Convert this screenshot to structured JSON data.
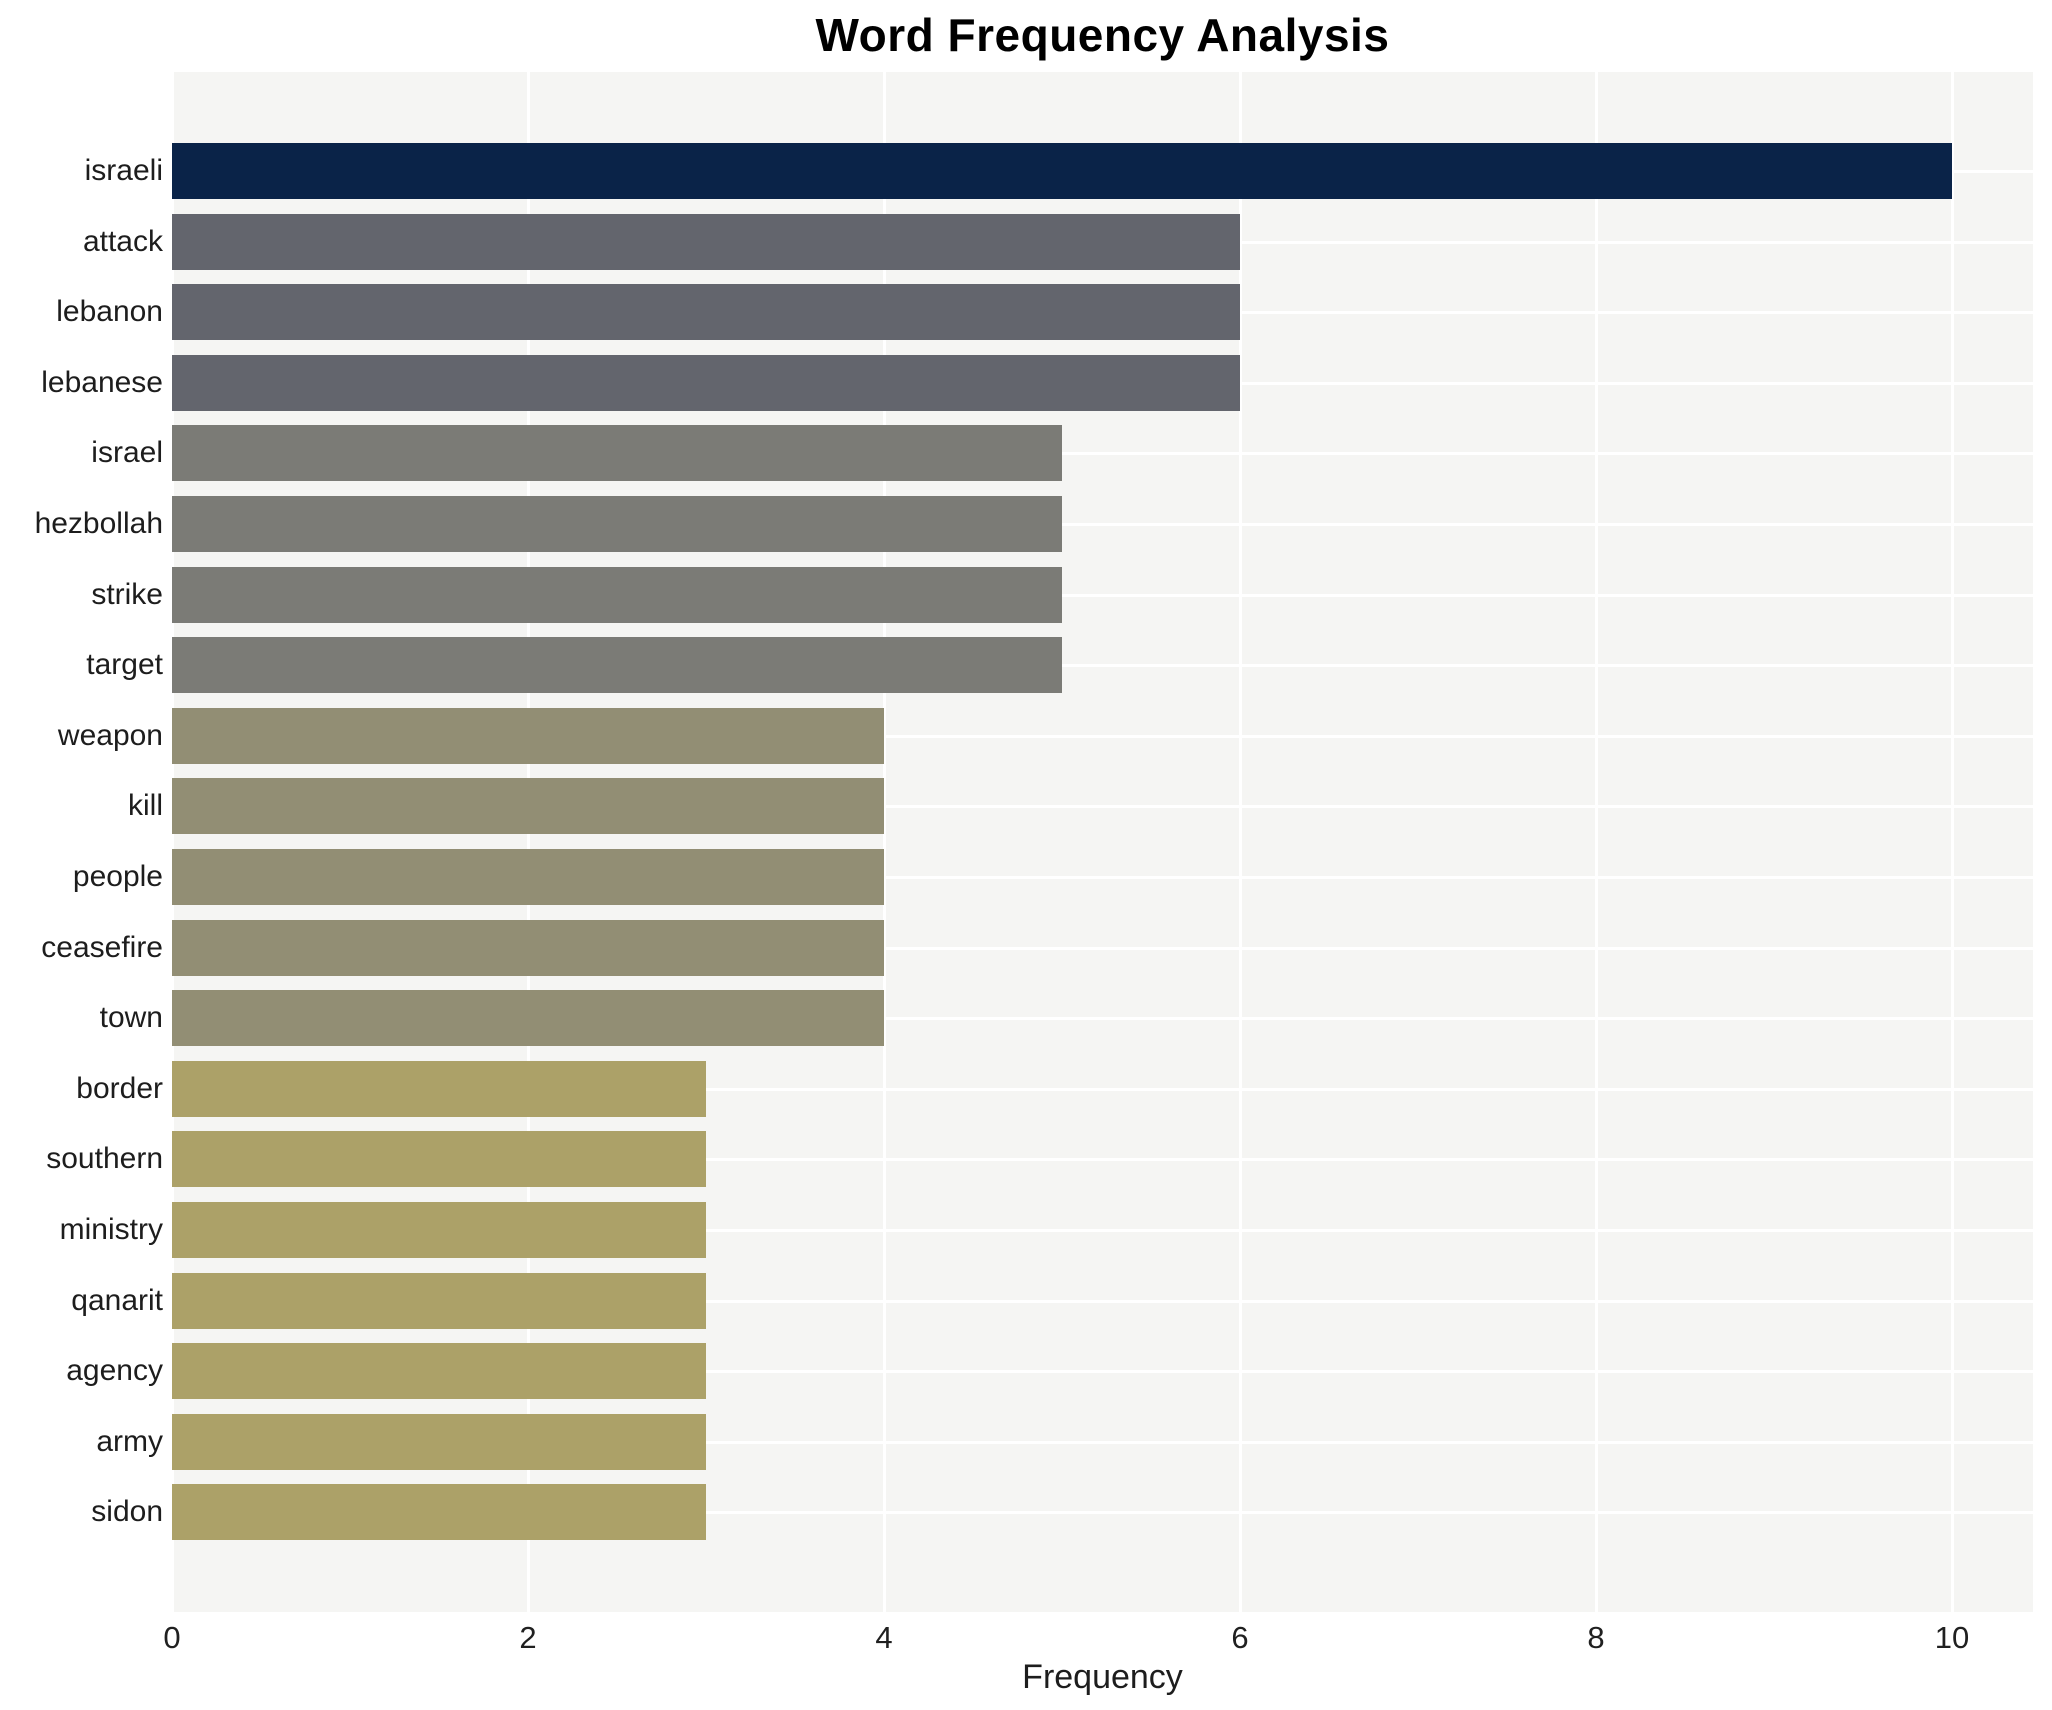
{
  "chart_data": {
    "type": "bar",
    "orientation": "horizontal",
    "title": "Word Frequency Analysis",
    "xlabel": "Frequency",
    "ylabel": "",
    "categories": [
      "israeli",
      "attack",
      "lebanon",
      "lebanese",
      "israel",
      "hezbollah",
      "strike",
      "target",
      "weapon",
      "kill",
      "people",
      "ceasefire",
      "town",
      "border",
      "southern",
      "ministry",
      "qanarit",
      "agency",
      "army",
      "sidon"
    ],
    "values": [
      10,
      6,
      6,
      6,
      5,
      5,
      5,
      5,
      4,
      4,
      4,
      4,
      4,
      3,
      3,
      3,
      3,
      3,
      3,
      3
    ],
    "bar_colors": [
      "#0a2348",
      "#63656d",
      "#63656d",
      "#63656d",
      "#7b7b76",
      "#7b7b76",
      "#7b7b76",
      "#7b7b76",
      "#928e74",
      "#928e74",
      "#928e74",
      "#928e74",
      "#928e74",
      "#aca168",
      "#aca168",
      "#aca168",
      "#aca168",
      "#aca168",
      "#aca168",
      "#aca168"
    ],
    "xticks": [
      0,
      2,
      4,
      6,
      8,
      10
    ],
    "xlim": [
      0,
      10.45
    ],
    "grid": true,
    "legend": "none",
    "plot_background": "#f5f5f3",
    "grid_color": "#ffffff",
    "title_color": "#000000",
    "tick_label_color": "#202020"
  }
}
